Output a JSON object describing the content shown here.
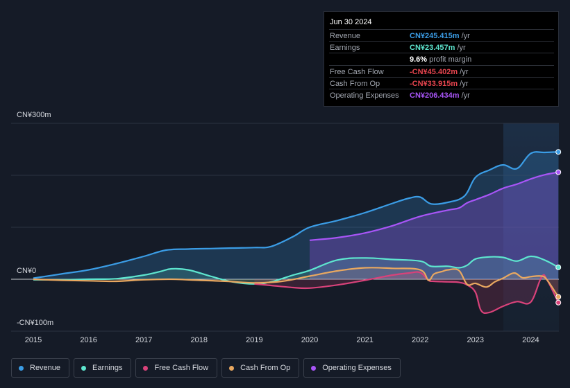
{
  "tooltip": {
    "date": "Jun 30 2024",
    "rows": [
      {
        "label": "Revenue",
        "value": "CN¥245.415m",
        "unit": " /yr",
        "color": "#3b9de6"
      },
      {
        "label": "Earnings",
        "value": "CN¥23.457m",
        "unit": " /yr",
        "color": "#5ee6cf"
      },
      {
        "label": "",
        "value": "9.6%",
        "unit": " profit margin",
        "color": "#ffffff"
      },
      {
        "label": "Free Cash Flow",
        "value": "-CN¥45.402m",
        "unit": " /yr",
        "color": "#e8454f"
      },
      {
        "label": "Cash From Op",
        "value": "-CN¥33.915m",
        "unit": " /yr",
        "color": "#e8454f"
      },
      {
        "label": "Operating Expenses",
        "value": "CN¥206.434m",
        "unit": " /yr",
        "color": "#a855f7"
      }
    ]
  },
  "axis": {
    "y_top": "CN¥300m",
    "y_zero": "CN¥0",
    "y_bottom": "-CN¥100m",
    "x_ticks": [
      "2015",
      "2016",
      "2017",
      "2018",
      "2019",
      "2020",
      "2021",
      "2022",
      "2023",
      "2024"
    ]
  },
  "legend": [
    {
      "label": "Revenue",
      "color": "#3b9de6"
    },
    {
      "label": "Earnings",
      "color": "#5ee6cf"
    },
    {
      "label": "Free Cash Flow",
      "color": "#d9427a"
    },
    {
      "label": "Cash From Op",
      "color": "#e9a860"
    },
    {
      "label": "Operating Expenses",
      "color": "#a855f7"
    }
  ],
  "chart_data": {
    "type": "area",
    "ylim": [
      -100,
      300
    ],
    "y_unit": "CN¥ millions",
    "grid": true,
    "legend_position": "bottom-left",
    "highlight_start": 2023.5,
    "series": [
      {
        "name": "Revenue",
        "color": "#3b9de6",
        "x": [
          2015.0,
          2015.5,
          2016.0,
          2016.5,
          2017.0,
          2017.4,
          2017.8,
          2018.2,
          2018.6,
          2019.0,
          2019.3,
          2019.7,
          2020.0,
          2020.5,
          2021.0,
          2021.5,
          2021.8,
          2022.0,
          2022.2,
          2022.5,
          2022.8,
          2023.0,
          2023.25,
          2023.5,
          2023.75,
          2024.0,
          2024.25,
          2024.5
        ],
        "y": [
          2,
          10,
          18,
          30,
          44,
          56,
          58,
          59,
          60,
          61,
          63,
          82,
          100,
          113,
          128,
          146,
          156,
          158,
          145,
          148,
          160,
          196,
          210,
          220,
          213,
          242,
          244,
          245
        ]
      },
      {
        "name": "Earnings",
        "color": "#5ee6cf",
        "x": [
          2015.0,
          2015.5,
          2016.0,
          2016.5,
          2017.0,
          2017.3,
          2017.5,
          2017.8,
          2018.2,
          2018.6,
          2019.0,
          2019.3,
          2019.7,
          2020.0,
          2020.5,
          2021.0,
          2021.5,
          2022.0,
          2022.2,
          2022.5,
          2022.7,
          2022.85,
          2023.0,
          2023.25,
          2023.5,
          2023.75,
          2024.0,
          2024.25,
          2024.5
        ],
        "y": [
          -1,
          -1,
          0,
          1,
          8,
          15,
          20,
          18,
          6,
          -5,
          -9,
          -5,
          8,
          17,
          37,
          41,
          38,
          35,
          25,
          25,
          22,
          27,
          39,
          43,
          42,
          35,
          44,
          37,
          23
        ]
      },
      {
        "name": "Free Cash Flow",
        "color": "#d9427a",
        "x": [
          2019.0,
          2019.3,
          2019.7,
          2020.0,
          2020.5,
          2021.0,
          2021.5,
          2021.8,
          2022.0,
          2022.15,
          2022.25,
          2022.5,
          2022.7,
          2022.85,
          2023.0,
          2023.1,
          2023.25,
          2023.5,
          2023.75,
          2024.0,
          2024.2,
          2024.3,
          2024.5
        ],
        "y": [
          -9,
          -12,
          -16,
          -17,
          -11,
          -2,
          8,
          12,
          13,
          -2,
          -4,
          -5,
          -6,
          -11,
          -25,
          -60,
          -64,
          -52,
          -43,
          -44,
          5,
          -2,
          -45
        ]
      },
      {
        "name": "Cash From Op",
        "color": "#e9a860",
        "x": [
          2015.0,
          2015.5,
          2016.0,
          2016.5,
          2017.0,
          2017.5,
          2018.0,
          2018.5,
          2019.0,
          2019.5,
          2020.0,
          2020.5,
          2021.0,
          2021.5,
          2022.0,
          2022.15,
          2022.25,
          2022.4,
          2022.5,
          2022.7,
          2022.85,
          2023.0,
          2023.2,
          2023.35,
          2023.5,
          2023.7,
          2023.85,
          2024.0,
          2024.2,
          2024.3,
          2024.5
        ],
        "y": [
          0,
          -2,
          -3,
          -4,
          -1,
          0,
          -2,
          -4,
          -7,
          -4,
          6,
          16,
          22,
          21,
          18,
          -2,
          10,
          15,
          18,
          17,
          -10,
          -8,
          -15,
          -5,
          2,
          12,
          3,
          5,
          6,
          -2,
          -34
        ]
      },
      {
        "name": "Operating Expenses",
        "color": "#a855f7",
        "x": [
          2020.0,
          2020.5,
          2021.0,
          2021.5,
          2022.0,
          2022.5,
          2022.7,
          2022.85,
          2023.0,
          2023.25,
          2023.5,
          2023.75,
          2024.0,
          2024.25,
          2024.5
        ],
        "y": [
          75,
          80,
          89,
          103,
          121,
          133,
          137,
          147,
          153,
          163,
          175,
          183,
          193,
          201,
          206
        ]
      }
    ]
  }
}
